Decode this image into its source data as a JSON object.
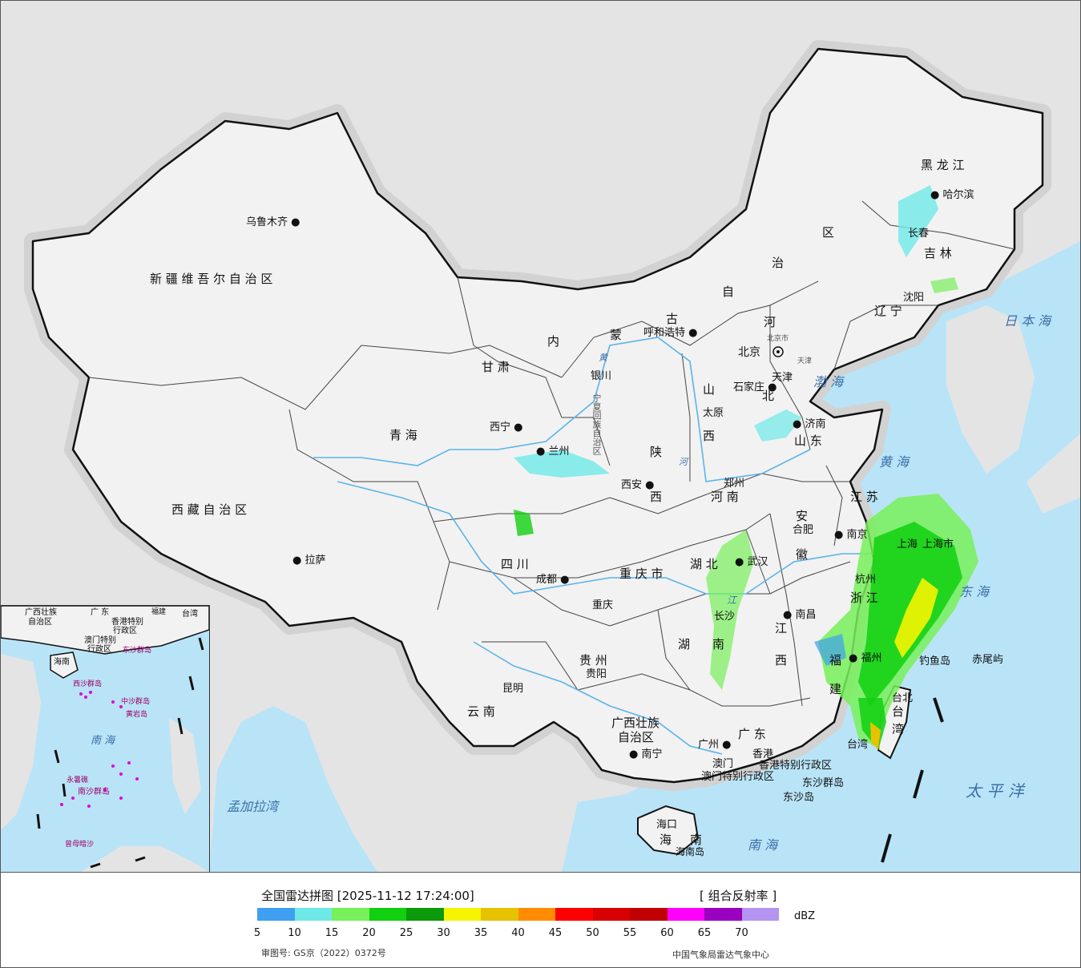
{
  "map": {
    "colors": {
      "ocean": "#b9e4f7",
      "land_china": "#f2f2f2",
      "land_neighbor": "#e4e4e4",
      "border": "#111111",
      "river": "#5ab4e8"
    },
    "provinces": [
      {
        "id": "xinjiang",
        "label": "新 疆 维 吾 尔 自 治 区"
      },
      {
        "id": "xizang",
        "label": "西 藏 自 治 区"
      },
      {
        "id": "qinghai",
        "label": "青 海"
      },
      {
        "id": "gansu",
        "label": "甘 肃"
      },
      {
        "id": "neimenggu1",
        "label": "内"
      },
      {
        "id": "neimenggu2",
        "label": "蒙"
      },
      {
        "id": "neimenggu3",
        "label": "古"
      },
      {
        "id": "neimenggu4",
        "label": "自"
      },
      {
        "id": "neimenggu5",
        "label": "治"
      },
      {
        "id": "neimenggu6",
        "label": "区"
      },
      {
        "id": "heilongjiang",
        "label": "黑 龙 江"
      },
      {
        "id": "jilin",
        "label": "吉 林"
      },
      {
        "id": "liaoning",
        "label": "辽 宁"
      },
      {
        "id": "hebei1",
        "label": "河"
      },
      {
        "id": "hebei2",
        "label": "北"
      },
      {
        "id": "shanxi1",
        "label": "山"
      },
      {
        "id": "shanxi2",
        "label": "西"
      },
      {
        "id": "shandong",
        "label": "山 东"
      },
      {
        "id": "shaanxi1",
        "label": "陕"
      },
      {
        "id": "shaanxi2",
        "label": "西"
      },
      {
        "id": "henan",
        "label": "河 南"
      },
      {
        "id": "jiangsu",
        "label": "江 苏"
      },
      {
        "id": "anhui",
        "label": "安"
      },
      {
        "id": "anhui2",
        "label": "徽"
      },
      {
        "id": "sichuan",
        "label": "四 川"
      },
      {
        "id": "chongqing",
        "label": "重 庆 市"
      },
      {
        "id": "hubei",
        "label": "湖 北"
      },
      {
        "id": "hunan1",
        "label": "湖"
      },
      {
        "id": "hunan2",
        "label": "南"
      },
      {
        "id": "jiangxi1",
        "label": "江"
      },
      {
        "id": "jiangxi2",
        "label": "西"
      },
      {
        "id": "zhejiang",
        "label": "浙 江"
      },
      {
        "id": "fujian1",
        "label": "福"
      },
      {
        "id": "fujian2",
        "label": "建"
      },
      {
        "id": "guizhou",
        "label": "贵 州"
      },
      {
        "id": "yunnan",
        "label": "云 南"
      },
      {
        "id": "guangxi1",
        "label": "广西壮族"
      },
      {
        "id": "guangxi2",
        "label": "自治区"
      },
      {
        "id": "guangdong",
        "label": "广 东"
      },
      {
        "id": "taiwan1",
        "label": "台"
      },
      {
        "id": "taiwan2",
        "label": "湾"
      },
      {
        "id": "hainan1",
        "label": "海"
      },
      {
        "id": "hainan2",
        "label": "南"
      },
      {
        "id": "ningxia",
        "label": "宁夏回族自治区"
      },
      {
        "id": "hk",
        "label": "香港特别行政区"
      },
      {
        "id": "macao",
        "label": "澳门特别行政区"
      }
    ],
    "cities": [
      {
        "id": "urumqi",
        "label": "乌鲁木齐"
      },
      {
        "id": "lhasa",
        "label": "拉萨"
      },
      {
        "id": "xining",
        "label": "西宁"
      },
      {
        "id": "lanzhou",
        "label": "兰州"
      },
      {
        "id": "yinchuan",
        "label": "银川"
      },
      {
        "id": "hohhot",
        "label": "呼和浩特"
      },
      {
        "id": "beijing",
        "label": "北京"
      },
      {
        "id": "beijingshi",
        "label": "北京市"
      },
      {
        "id": "tianjin",
        "label": "天津"
      },
      {
        "id": "tianjinshi",
        "label": "天津"
      },
      {
        "id": "shijiazhuang",
        "label": "石家庄"
      },
      {
        "id": "taiyuan",
        "label": "太原"
      },
      {
        "id": "jinan",
        "label": "济南"
      },
      {
        "id": "xian",
        "label": "西安"
      },
      {
        "id": "zhengzhou",
        "label": "郑州"
      },
      {
        "id": "hefei",
        "label": "合肥"
      },
      {
        "id": "nanjing",
        "label": "南京"
      },
      {
        "id": "shanghai",
        "label": "上海"
      },
      {
        "id": "shanghaishi",
        "label": "上海市"
      },
      {
        "id": "hangzhou",
        "label": "杭州"
      },
      {
        "id": "wuhan",
        "label": "武汉"
      },
      {
        "id": "chengdu",
        "label": "成都"
      },
      {
        "id": "chongqingcity",
        "label": "重庆"
      },
      {
        "id": "changsha",
        "label": "长沙"
      },
      {
        "id": "nanchang",
        "label": "南昌"
      },
      {
        "id": "fuzhou",
        "label": "福州"
      },
      {
        "id": "guiyang",
        "label": "贵阳"
      },
      {
        "id": "kunming",
        "label": "昆明"
      },
      {
        "id": "nanning",
        "label": "南宁"
      },
      {
        "id": "guangzhou",
        "label": "广州"
      },
      {
        "id": "hongkong",
        "label": "香港"
      },
      {
        "id": "macau",
        "label": "澳门"
      },
      {
        "id": "haikou",
        "label": "海口"
      },
      {
        "id": "taibei",
        "label": "台北"
      },
      {
        "id": "taiwan_isl",
        "label": "台湾"
      },
      {
        "id": "shenyang",
        "label": "沈阳"
      },
      {
        "id": "changchun",
        "label": "长春"
      },
      {
        "id": "harbin",
        "label": "哈尔滨"
      },
      {
        "id": "diaoyu",
        "label": "钓鱼岛"
      },
      {
        "id": "chiwei",
        "label": "赤尾屿"
      },
      {
        "id": "dongsha",
        "label": "东沙群岛"
      },
      {
        "id": "dongsha2",
        "label": "东沙岛"
      },
      {
        "id": "hainandao",
        "label": "海南岛"
      }
    ],
    "seas": [
      {
        "id": "bohai",
        "label": "渤 海"
      },
      {
        "id": "huanghai",
        "label": "黄 海"
      },
      {
        "id": "donghai",
        "label": "东 海"
      },
      {
        "id": "nanhai",
        "label": "南 海"
      },
      {
        "id": "taipingyang",
        "label": "太 平 洋"
      },
      {
        "id": "ribenhai",
        "label": "日 本 海"
      },
      {
        "id": "mengjiala",
        "label": "孟加拉湾"
      }
    ],
    "rivers": [
      {
        "id": "huanghe",
        "label": "黄"
      },
      {
        "id": "changjiang",
        "label": "江"
      },
      {
        "id": "he",
        "label": "河"
      }
    ],
    "inset": {
      "labels": [
        {
          "id": "i_guangxi",
          "label": "广西壮族"
        },
        {
          "id": "i_zizhiqu",
          "label": "自治区"
        },
        {
          "id": "i_guangdong",
          "label": "广 东"
        },
        {
          "id": "i_fujian",
          "label": "福建"
        },
        {
          "id": "i_taiwan",
          "label": "台湾"
        },
        {
          "id": "i_hk",
          "label": "香港特别"
        },
        {
          "id": "i_hk2",
          "label": "行政区"
        },
        {
          "id": "i_macau",
          "label": "澳门特别"
        },
        {
          "id": "i_macau2",
          "label": "行政区"
        },
        {
          "id": "i_dongsha",
          "label": "东沙群岛"
        },
        {
          "id": "i_hainan",
          "label": "海南"
        },
        {
          "id": "i_xisha",
          "label": "西沙群岛"
        },
        {
          "id": "i_zhongsha",
          "label": "中沙群岛"
        },
        {
          "id": "i_huangyan",
          "label": "黄岩岛"
        },
        {
          "id": "i_nanhai",
          "label": "南 海"
        },
        {
          "id": "i_yongshu",
          "label": "永暑礁"
        },
        {
          "id": "i_nansha",
          "label": "南沙群岛"
        },
        {
          "id": "i_zengmu",
          "label": "曾母暗沙"
        }
      ]
    }
  },
  "legend": {
    "title": "全国雷达拼图 [2025-11-12 17:24:00]",
    "product": "[ 组合反射率 ]",
    "unit": "dBZ",
    "colors": [
      "#3f9ff0",
      "#6fe8e8",
      "#78f05a",
      "#10d010",
      "#0a9a0a",
      "#f5f500",
      "#e6c200",
      "#ff8c00",
      "#ff0000",
      "#d80000",
      "#c00000",
      "#ff00ff",
      "#9a00c0",
      "#b494f0"
    ],
    "ticks": [
      "5",
      "10",
      "15",
      "20",
      "25",
      "30",
      "35",
      "40",
      "45",
      "50",
      "55",
      "60",
      "65",
      "70"
    ],
    "approval": "审图号: GS京（2022）0372号",
    "credit": "中国气象局雷达气象中心"
  }
}
